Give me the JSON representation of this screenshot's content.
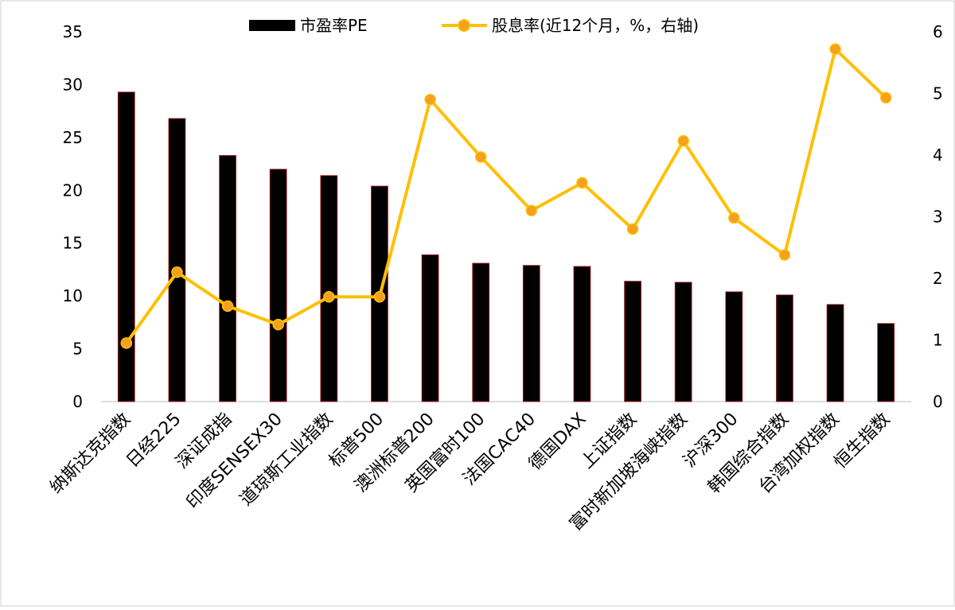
{
  "chart_data": {
    "type": "bar+line",
    "title": "",
    "legend_position": "top-center",
    "categories": [
      "纳斯达克指数",
      "日经225",
      "深证成指",
      "印度SENSEX30",
      "道琼斯工业指数",
      "标普500",
      "澳洲标普200",
      "英国富时100",
      "法国CAC40",
      "德国DAX",
      "上证指数",
      "富时新加坡海峡指数",
      "沪深300",
      "韩国综合指数",
      "台湾加权指数",
      "恒生指数"
    ],
    "series": [
      {
        "name": "市盈率PE",
        "type": "bar",
        "axis": "left",
        "color": "#000000",
        "values": [
          29.3,
          26.8,
          23.3,
          22.0,
          21.4,
          20.4,
          13.9,
          13.1,
          12.9,
          12.8,
          11.4,
          11.3,
          10.4,
          10.1,
          9.2,
          7.4
        ]
      },
      {
        "name": "股息率(近12个月，%，右轴)",
        "type": "line",
        "axis": "right",
        "color": "#FFC000",
        "marker_color": "#F4A020",
        "values": [
          0.95,
          2.1,
          1.55,
          1.25,
          1.7,
          1.7,
          4.9,
          3.97,
          3.1,
          3.55,
          2.8,
          4.23,
          2.98,
          2.38,
          5.72,
          4.93
        ]
      }
    ],
    "y_left": {
      "min": 0,
      "max": 35,
      "ticks": [
        "0",
        "5",
        "10",
        "15",
        "20",
        "25",
        "30",
        "35"
      ]
    },
    "y_right": {
      "min": 0,
      "max": 6,
      "ticks": [
        "0",
        "1",
        "2",
        "3",
        "4",
        "5",
        "6"
      ]
    }
  }
}
